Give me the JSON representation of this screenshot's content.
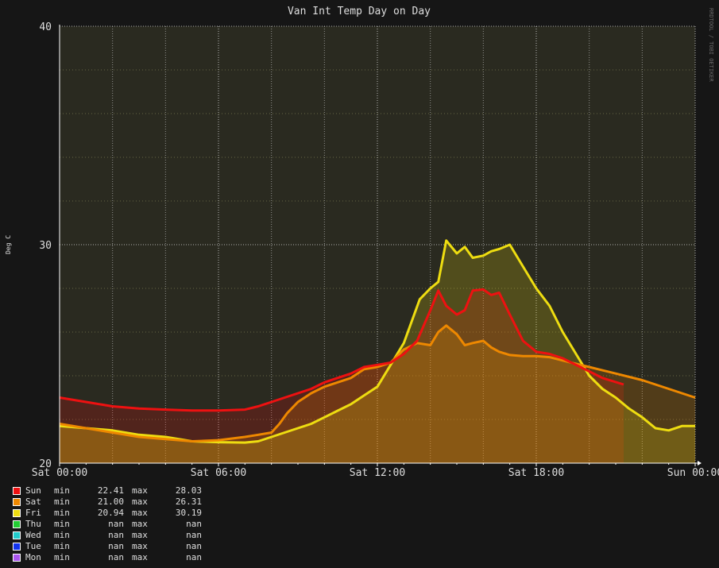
{
  "chart_data": {
    "type": "area",
    "title": "Van Int Temp Day on Day",
    "ylabel": "Deg C",
    "watermark": "RRDTOOL / TOBI OETIKER",
    "ylim": [
      20,
      40
    ],
    "yticks": [
      "40",
      "30",
      "20"
    ],
    "xlim": [
      0,
      24
    ],
    "xticks": [
      {
        "x": 0,
        "label": "Sat 00:00"
      },
      {
        "x": 6,
        "label": "Sat 06:00"
      },
      {
        "x": 12,
        "label": "Sat 12:00"
      },
      {
        "x": 18,
        "label": "Sat 18:00"
      },
      {
        "x": 24,
        "label": "Sun 00:00"
      }
    ],
    "grid": true,
    "legend_position": "bottom-left",
    "series": [
      {
        "name": "Sun",
        "color": "#ee1111",
        "min": "22.41",
        "max": "28.03",
        "x": [
          0,
          1,
          2,
          3,
          4,
          5,
          6,
          7,
          7.5,
          8,
          8.5,
          9,
          9.5,
          10,
          11,
          11.5,
          12,
          12.5,
          13,
          13.5,
          14,
          14.3,
          14.6,
          15,
          15.3,
          15.6,
          16,
          16.3,
          16.6,
          17,
          17.5,
          18,
          18.5,
          19,
          19.5,
          20,
          20.5,
          21.3
        ],
        "y": [
          23.0,
          22.8,
          22.6,
          22.5,
          22.45,
          22.41,
          22.41,
          22.45,
          22.6,
          22.8,
          23.0,
          23.2,
          23.4,
          23.7,
          24.1,
          24.4,
          24.5,
          24.6,
          25.0,
          25.6,
          27.0,
          27.9,
          27.2,
          26.8,
          27.0,
          27.9,
          27.95,
          27.7,
          27.8,
          26.8,
          25.6,
          25.1,
          25.0,
          24.8,
          24.5,
          24.2,
          23.9,
          23.6
        ]
      },
      {
        "name": "Sat",
        "color": "#ee8800",
        "min": "21.00",
        "max": "26.31",
        "x": [
          0,
          1,
          2,
          3,
          4,
          5,
          6,
          7,
          7.5,
          8,
          8.3,
          8.6,
          9,
          9.5,
          10,
          11,
          11.5,
          12,
          12.5,
          13,
          13.5,
          14,
          14.3,
          14.6,
          15,
          15.3,
          15.6,
          16,
          16.3,
          16.6,
          17,
          17.5,
          18,
          18.5,
          19,
          20,
          21,
          22,
          23,
          24
        ],
        "y": [
          21.8,
          21.6,
          21.4,
          21.2,
          21.1,
          21.0,
          21.05,
          21.2,
          21.3,
          21.4,
          21.8,
          22.3,
          22.8,
          23.2,
          23.5,
          23.9,
          24.3,
          24.4,
          24.6,
          25.2,
          25.5,
          25.4,
          26.0,
          26.3,
          25.9,
          25.4,
          25.5,
          25.6,
          25.3,
          25.1,
          24.95,
          24.9,
          24.9,
          24.85,
          24.7,
          24.4,
          24.1,
          23.8,
          23.4,
          23.0
        ]
      },
      {
        "name": "Fri",
        "color": "#eedd11",
        "min": "20.94",
        "max": "30.19",
        "x": [
          0,
          1,
          2,
          3,
          4,
          5,
          6,
          7,
          7.5,
          8,
          8.5,
          9,
          9.5,
          10,
          10.5,
          11,
          11.5,
          12,
          12.5,
          13,
          13.3,
          13.6,
          14,
          14.3,
          14.6,
          15,
          15.3,
          15.6,
          16,
          16.3,
          16.6,
          17,
          17.5,
          18,
          18.5,
          19,
          19.5,
          20,
          20.5,
          21,
          21.5,
          22,
          22.5,
          23,
          23.5,
          24
        ],
        "y": [
          21.7,
          21.6,
          21.5,
          21.3,
          21.2,
          21.0,
          20.96,
          20.94,
          21.0,
          21.2,
          21.4,
          21.6,
          21.8,
          22.1,
          22.4,
          22.7,
          23.1,
          23.5,
          24.5,
          25.5,
          26.5,
          27.5,
          28.0,
          28.3,
          30.19,
          29.6,
          29.9,
          29.4,
          29.5,
          29.7,
          29.8,
          30.0,
          29.0,
          28.0,
          27.2,
          26.0,
          25.0,
          24.0,
          23.4,
          23.0,
          22.5,
          22.1,
          21.6,
          21.5,
          21.7,
          21.7
        ]
      },
      {
        "name": "Thu",
        "color": "#22cc33",
        "min": "nan",
        "max": "nan",
        "x": [],
        "y": []
      },
      {
        "name": "Wed",
        "color": "#22cccc",
        "min": "nan",
        "max": "nan",
        "x": [],
        "y": []
      },
      {
        "name": "Tue",
        "color": "#1133ee",
        "min": "nan",
        "max": "nan",
        "x": [],
        "y": []
      },
      {
        "name": "Mon",
        "color": "#aa55ee",
        "min": "nan",
        "max": "nan",
        "x": [],
        "y": []
      }
    ]
  },
  "legend": {
    "min_label": "min",
    "max_label": "max"
  }
}
